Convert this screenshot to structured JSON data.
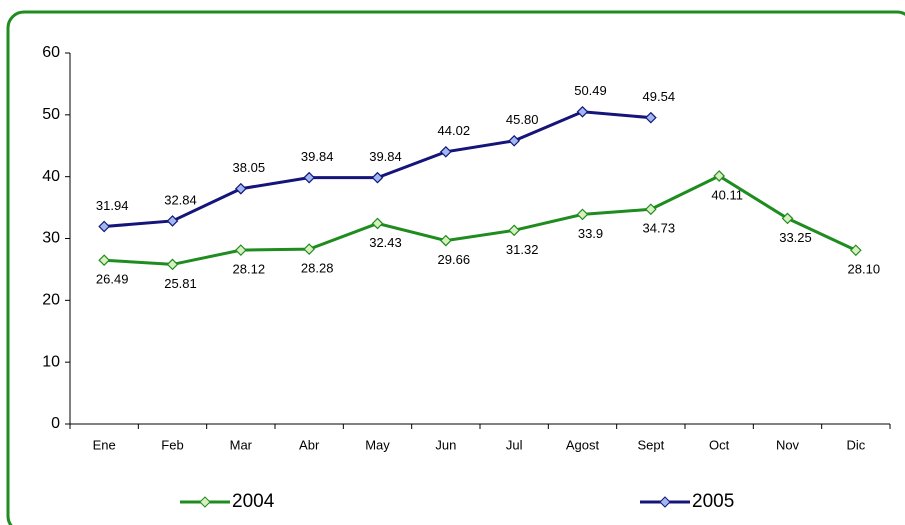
{
  "chart_data": {
    "type": "line",
    "categories": [
      "Ene",
      "Feb",
      "Mar",
      "Abr",
      "May",
      "Jun",
      "Jul",
      "Agost",
      "Sept",
      "Oct",
      "Nov",
      "Dic"
    ],
    "series": [
      {
        "name": "2004",
        "color": "#1e8c1e",
        "marker_fill": "#d8f0c0",
        "values": [
          26.49,
          25.81,
          28.12,
          28.28,
          32.43,
          29.66,
          31.32,
          33.9,
          34.73,
          40.11,
          33.25,
          28.1
        ],
        "value_labels": [
          "26.49",
          "25.81",
          "28.12",
          "28.28",
          "32.43",
          "29.66",
          "31.32",
          "33.9",
          "34.73",
          "40.11",
          "33.25",
          "28.10"
        ]
      },
      {
        "name": "2005",
        "color": "#14147a",
        "marker_fill": "#a0b8f0",
        "values": [
          31.94,
          32.84,
          38.05,
          39.84,
          39.84,
          44.02,
          45.8,
          50.49,
          49.54,
          null,
          null,
          null
        ],
        "value_labels": [
          "31.94",
          "32.84",
          "38.05",
          "39.84",
          "39.84",
          "44.02",
          "45.80",
          "50.49",
          "49.54",
          null,
          null,
          null
        ]
      }
    ],
    "ylim": [
      0,
      60
    ],
    "yticks": [
      0,
      10,
      20,
      30,
      40,
      50,
      60
    ],
    "grid": false,
    "legend": "bottom"
  }
}
